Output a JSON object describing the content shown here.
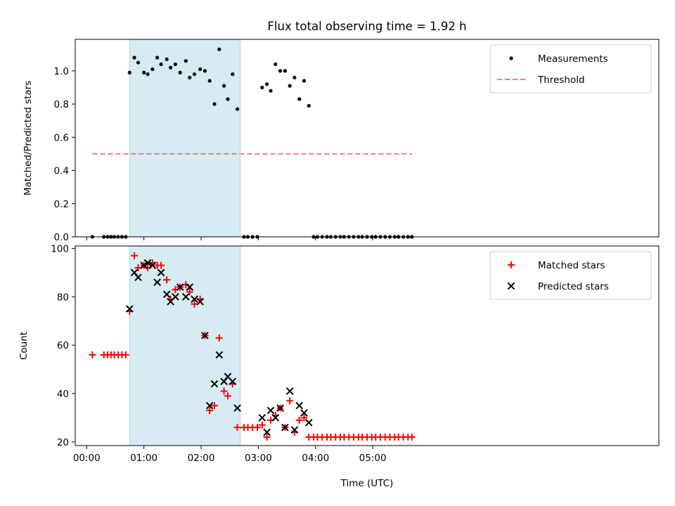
{
  "chart_data": {
    "type": "scatter",
    "title": "Flux total observing time = 1.92 h",
    "xlabel": "Time (UTC)",
    "x_unit": "minutes",
    "xlim": [
      -12,
      600
    ],
    "xticks": [
      {
        "value": 0,
        "label": "00:00"
      },
      {
        "value": 60,
        "label": "01:00"
      },
      {
        "value": 120,
        "label": "02:00"
      },
      {
        "value": 180,
        "label": "03:00"
      },
      {
        "value": 240,
        "label": "04:00"
      },
      {
        "value": 300,
        "label": "05:00"
      }
    ],
    "shaded_region": {
      "x0": 45,
      "x1": 161,
      "color": "#add8e6"
    },
    "panels": [
      {
        "id": "ratio",
        "ylabel": "Matched/Predicted stars",
        "ylim": [
          0,
          1.19
        ],
        "yticks": [
          0.0,
          0.2,
          0.4,
          0.6,
          0.8,
          1.0
        ],
        "ytick_decimals": 1,
        "legend": {
          "placement": "upper-right"
        },
        "series": [
          {
            "name": "Measurements",
            "marker": "dot",
            "color": "#000000",
            "x": [
              6,
              18,
              22,
              25.5,
              29,
              33,
              37,
              41,
              45,
              50,
              54,
              60,
              64,
              69,
              74,
              78,
              84,
              88,
              93,
              98,
              104,
              108,
              113,
              119,
              124,
              129,
              134,
              139,
              144,
              148,
              153,
              158,
              165,
              169,
              174,
              179,
              184,
              189,
              193,
              198,
              203,
              208,
              213,
              218,
              223,
              228,
              233,
              238,
              242,
              247,
              252,
              256,
              261,
              266,
              270,
              275,
              280,
              285,
              289,
              294,
              299,
              303,
              308,
              313,
              318,
              323,
              327,
              332,
              337,
              341
            ],
            "y": [
              0,
              0,
              0,
              0,
              0,
              0,
              0,
              0,
              0.99,
              1.08,
              1.05,
              0.99,
              0.98,
              1.01,
              1.08,
              1.04,
              1.07,
              1.02,
              1.04,
              0.99,
              1.06,
              0.96,
              0.98,
              1.01,
              1.0,
              0.94,
              0.8,
              1.13,
              0.91,
              0.83,
              0.98,
              0.77,
              0,
              0,
              0,
              0,
              0.9,
              0.92,
              0.88,
              1.04,
              1.0,
              1.0,
              0.91,
              0.96,
              0.83,
              0.94,
              0.79,
              0,
              0,
              0,
              0,
              0,
              0,
              0,
              0,
              0,
              0,
              0,
              0,
              0,
              0,
              0,
              0,
              0,
              0,
              0,
              0,
              0,
              0,
              0
            ]
          },
          {
            "name": "Threshold",
            "type": "line",
            "style": "dashed",
            "color": "#f08080",
            "x": [
              6,
              341
            ],
            "y": [
              0.5,
              0.5
            ]
          }
        ]
      },
      {
        "id": "count",
        "ylabel": "Count",
        "ylim": [
          18.5,
          101
        ],
        "yticks": [
          20,
          40,
          60,
          80,
          100
        ],
        "ytick_decimals": 0,
        "legend": {
          "placement": "upper-right"
        },
        "series": [
          {
            "name": "Matched stars",
            "marker": "plus",
            "color": "#ff0000",
            "x": [
              6,
              18,
              22,
              25.5,
              29,
              33,
              37,
              41,
              45,
              50,
              54,
              60,
              64,
              69,
              74,
              78,
              84,
              88,
              93,
              98,
              104,
              108,
              113,
              119,
              124,
              129,
              134,
              139,
              144,
              148,
              153,
              158,
              165,
              169,
              174,
              179,
              184,
              189,
              193,
              198,
              203,
              208,
              213,
              218,
              223,
              228,
              233,
              238,
              242,
              247,
              252,
              256,
              261,
              266,
              270,
              275,
              280,
              285,
              289,
              294,
              299,
              303,
              308,
              313,
              318,
              323,
              327,
              332,
              337,
              341
            ],
            "y": [
              56,
              56,
              56,
              56,
              56,
              56,
              56,
              56,
              74,
              97,
              92,
              93,
              92,
              94,
              93,
              93,
              87,
              79,
              83,
              84,
              85,
              82,
              77,
              79,
              64,
              33,
              35,
              63,
              41,
              39,
              44,
              26,
              26,
              26,
              26,
              26,
              27,
              22,
              29,
              31,
              34,
              26,
              37,
              24,
              29,
              30,
              22,
              22,
              22,
              22,
              22,
              22,
              22,
              22,
              22,
              22,
              22,
              22,
              22,
              22,
              22,
              22,
              22,
              22,
              22,
              22,
              22,
              22,
              22,
              22
            ]
          },
          {
            "name": "Predicted stars",
            "marker": "x",
            "color": "#000000",
            "x": [
              45,
              50,
              54,
              60,
              64,
              69,
              74,
              78,
              84,
              88,
              93,
              98,
              104,
              108,
              113,
              119,
              124,
              129,
              134,
              139,
              144,
              148,
              153,
              158,
              184,
              189,
              193,
              198,
              203,
              208,
              213,
              218,
              223,
              228,
              233
            ],
            "y": [
              75,
              90,
              88,
              93,
              94,
              93,
              86,
              90,
              81,
              78,
              80,
              84,
              80,
              84,
              79,
              78,
              64,
              35,
              44,
              56,
              45,
              47,
              45,
              34,
              30,
              24,
              33,
              30,
              34,
              26,
              41,
              25,
              35,
              32,
              28
            ]
          }
        ]
      }
    ]
  }
}
